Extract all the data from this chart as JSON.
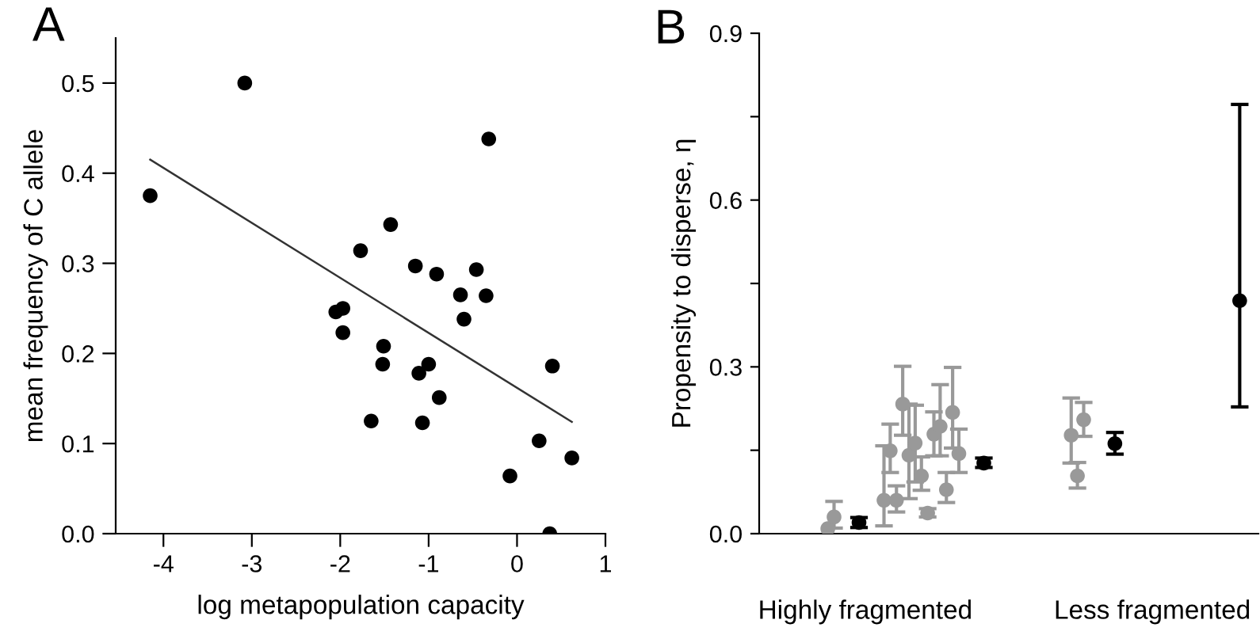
{
  "chart_data": [
    {
      "type": "scatter",
      "title": "A",
      "xlabel": "log metapopulation capacity",
      "ylabel": "mean frequency of C allele",
      "xlim": [
        -4.54,
        1
      ],
      "ylim": [
        0,
        0.55
      ],
      "xticks": [
        -4,
        -3,
        -2,
        -1,
        0,
        1
      ],
      "yticks": [
        {
          "value": 0,
          "label": "0.0"
        },
        0.1,
        0.2,
        0.3,
        0.4,
        0.5
      ],
      "marker": "circle",
      "grid": false,
      "series": [
        {
          "color": "#000000",
          "x": [
            -4.15,
            -3.08,
            -2.05,
            -1.97,
            -1.97,
            -1.77,
            -1.65,
            -1.51,
            -1.52,
            -1.43,
            -1.15,
            -1.11,
            -1.07,
            -1.0,
            -0.91,
            -0.88,
            -0.64,
            -0.6,
            -0.46,
            -0.35,
            -0.32,
            -0.08,
            0.25,
            0.4,
            0.37,
            0.62
          ],
          "values": [
            0.375,
            0.5,
            0.246,
            0.25,
            0.223,
            0.314,
            0.125,
            0.208,
            0.188,
            0.343,
            0.297,
            0.178,
            0.123,
            0.188,
            0.288,
            0.151,
            0.265,
            0.238,
            0.293,
            0.264,
            0.438,
            0.064,
            0.103,
            0.186,
            0.0,
            0.084
          ]
        },
        {
          "type": "line",
          "color": "#333333",
          "marker": "none",
          "x": [
            -4.15,
            0.62
          ],
          "values": [
            0.415,
            0.124
          ]
        }
      ]
    },
    {
      "type": "scatter",
      "title": "B",
      "ylabel": "Propensity to disperse, η",
      "ylim": [
        0,
        0.9
      ],
      "yticks": [
        {
          "value": 0,
          "label": "0.0"
        },
        {
          "value": 0.15,
          "label": null
        },
        0.3,
        {
          "value": 0.45,
          "label": null
        },
        0.6,
        {
          "value": 0.75,
          "label": null
        },
        0.9
      ],
      "marker": "circle",
      "grid": false,
      "categories": [
        null,
        null,
        null,
        null,
        null,
        null,
        null,
        null,
        null,
        null,
        null,
        null,
        null,
        null,
        null,
        null,
        null,
        "Highly fragmented",
        null,
        null,
        null,
        null,
        null,
        null,
        null,
        null,
        null,
        null,
        null,
        null,
        null,
        null,
        null,
        null,
        null,
        null,
        null,
        null,
        null,
        null,
        null,
        null,
        null,
        null,
        null,
        null,
        null,
        null,
        null,
        null,
        null,
        null,
        null,
        null,
        null,
        null,
        null,
        null,
        null,
        null,
        null,
        null,
        null,
        "Less fragmented",
        null,
        null,
        null,
        null,
        null,
        null,
        null,
        null,
        null,
        null,
        null,
        null,
        null,
        null,
        null,
        null,
        null
      ],
      "series": [
        {
          "color": "#999999",
          "values": [
            null,
            null,
            null,
            null,
            null,
            null,
            null,
            null,
            null,
            null,
            null,
            0.009,
            0.03,
            null,
            null,
            null,
            null,
            null,
            null,
            null,
            0.06,
            0.149,
            0.06,
            0.233,
            0.141,
            0.163,
            0.104,
            0.037,
            0.179,
            0.193,
            0.079,
            0.218,
            0.144,
            null,
            null,
            null,
            null,
            null,
            null,
            null,
            null,
            null,
            null,
            null,
            null,
            null,
            null,
            null,
            null,
            null,
            0.177,
            0.104,
            0.205,
            null,
            null,
            null,
            null,
            null,
            null,
            null,
            null,
            null,
            null,
            null,
            null,
            null,
            null,
            null,
            null,
            null,
            null,
            null,
            null,
            null,
            null,
            null,
            null,
            null,
            null,
            null,
            null
          ],
          "errors": [
            null,
            null,
            null,
            null,
            null,
            null,
            null,
            null,
            null,
            null,
            null,
            null,
            [
              0.01,
              0.058
            ],
            null,
            null,
            null,
            null,
            null,
            null,
            null,
            [
              0.014,
              0.158
            ],
            [
              0.11,
              0.197
            ],
            [
              0.039,
              0.086
            ],
            [
              0.177,
              0.301
            ],
            [
              0.063,
              0.233
            ],
            [
              0.093,
              0.231
            ],
            [
              0.078,
              0.138
            ],
            [
              0.03,
              0.045
            ],
            [
              0.14,
              0.219
            ],
            [
              0.14,
              0.268
            ],
            [
              0.056,
              0.11
            ],
            [
              0.154,
              0.299
            ],
            [
              0.11,
              0.188
            ],
            null,
            null,
            null,
            null,
            null,
            null,
            null,
            null,
            null,
            null,
            null,
            null,
            null,
            null,
            null,
            null,
            null,
            [
              0.127,
              0.244
            ],
            [
              0.082,
              0.128
            ],
            [
              0.175,
              0.236
            ],
            null,
            null,
            null,
            null,
            null,
            null,
            null,
            null,
            null,
            null,
            null,
            null,
            null,
            null,
            null,
            null,
            null,
            null,
            null,
            null,
            null,
            null,
            null,
            null,
            null,
            null,
            null,
            null
          ]
        },
        {
          "color": "#000000",
          "values": [
            null,
            null,
            null,
            null,
            null,
            null,
            null,
            null,
            null,
            null,
            null,
            null,
            null,
            null,
            null,
            null,
            0.02,
            null,
            null,
            null,
            null,
            null,
            null,
            null,
            null,
            null,
            null,
            null,
            null,
            null,
            null,
            null,
            null,
            null,
            null,
            null,
            0.127,
            null,
            null,
            null,
            null,
            null,
            null,
            null,
            null,
            null,
            null,
            null,
            null,
            null,
            null,
            null,
            null,
            null,
            null,
            null,
            null,
            0.162,
            null,
            null,
            null,
            null,
            null,
            null,
            null,
            null,
            null,
            null,
            null,
            null,
            null,
            null,
            null,
            null,
            null,
            null,
            null,
            0.419,
            null,
            null,
            null
          ],
          "errors": [
            null,
            null,
            null,
            null,
            null,
            null,
            null,
            null,
            null,
            null,
            null,
            null,
            null,
            null,
            null,
            null,
            [
              0.011,
              0.029
            ],
            null,
            null,
            null,
            null,
            null,
            null,
            null,
            null,
            null,
            null,
            null,
            null,
            null,
            null,
            null,
            null,
            null,
            null,
            null,
            [
              0.119,
              0.136
            ],
            null,
            null,
            null,
            null,
            null,
            null,
            null,
            null,
            null,
            null,
            null,
            null,
            null,
            null,
            null,
            null,
            null,
            null,
            null,
            null,
            [
              0.143,
              0.182
            ],
            null,
            null,
            null,
            null,
            null,
            null,
            null,
            null,
            null,
            null,
            null,
            null,
            null,
            null,
            null,
            null,
            null,
            null,
            null,
            [
              0.228,
              0.772
            ],
            null,
            null,
            null
          ]
        }
      ]
    }
  ]
}
